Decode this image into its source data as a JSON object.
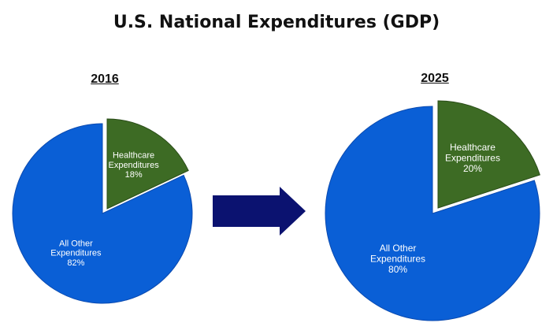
{
  "title": "U.S. National Expenditures (GDP)",
  "colors": {
    "healthcare": "#3d6b24",
    "healthcare_edge": "#2a4c18",
    "other": "#0a5fd6",
    "other_edge": "#0a4ab0",
    "arrow": "#0b1270"
  },
  "chart_data": [
    {
      "type": "pie",
      "title": "2016",
      "slices": [
        {
          "label_line1": "Healthcare",
          "label_line2": "Expenditures",
          "value_label": "18%",
          "value": 18,
          "color_key": "healthcare",
          "exploded": true
        },
        {
          "label_line1": "All Other",
          "label_line2": "Expenditures",
          "value_label": "82%",
          "value": 82,
          "color_key": "other",
          "exploded": false
        }
      ]
    },
    {
      "type": "pie",
      "title": "2025",
      "slices": [
        {
          "label_line1": "Healthcare",
          "label_line2": "Expenditures",
          "value_label": "20%",
          "value": 20,
          "color_key": "healthcare",
          "exploded": true
        },
        {
          "label_line1": "All Other",
          "label_line2": "Expenditures",
          "value_label": "80%",
          "value": 80,
          "color_key": "other",
          "exploded": false
        }
      ]
    }
  ]
}
